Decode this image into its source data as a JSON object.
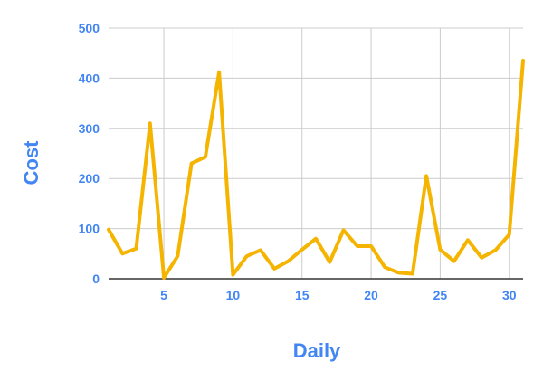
{
  "chart_data": {
    "type": "line",
    "title": "",
    "xlabel": "Daily",
    "ylabel": "Cost",
    "xlim": [
      1,
      31
    ],
    "ylim": [
      0,
      500
    ],
    "x_ticks": [
      5,
      10,
      15,
      20,
      25,
      30
    ],
    "y_ticks": [
      0,
      100,
      200,
      300,
      400,
      500
    ],
    "grid": true,
    "legend": "none",
    "series": [
      {
        "color": "#f4b400",
        "x": [
          1,
          2,
          3,
          4,
          5,
          6,
          7,
          8,
          9,
          10,
          11,
          12,
          13,
          14,
          15,
          16,
          17,
          18,
          19,
          20,
          21,
          22,
          23,
          24,
          25,
          26,
          27,
          28,
          29,
          30,
          31
        ],
        "values": [
          98,
          50,
          60,
          310,
          2,
          45,
          230,
          243,
          412,
          8,
          45,
          57,
          20,
          35,
          58,
          80,
          33,
          97,
          65,
          65,
          23,
          12,
          10,
          205,
          58,
          35,
          77,
          42,
          57,
          88,
          435
        ]
      }
    ]
  },
  "colors": {
    "axis_text": "#4285f4",
    "gridline": "#cccccc",
    "axis_line": "#333333"
  }
}
